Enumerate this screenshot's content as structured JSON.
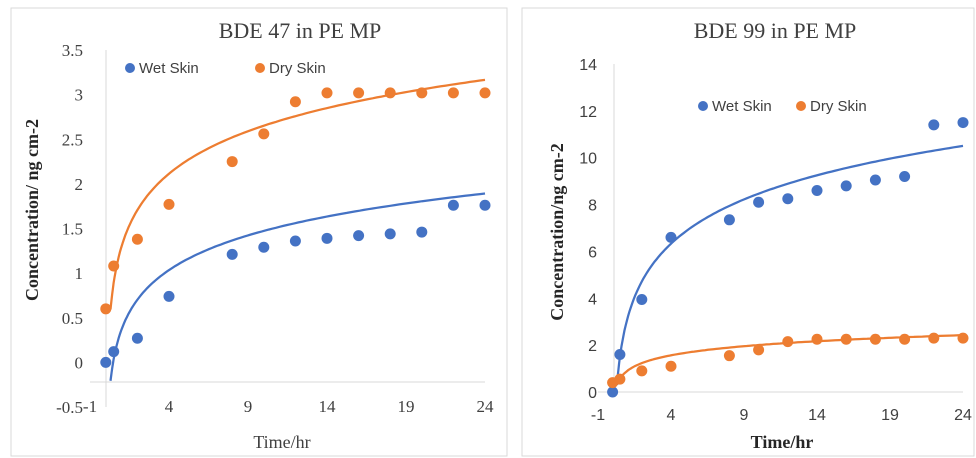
{
  "chart_data": [
    {
      "type": "scatter",
      "title": "BDE 47 in PE MP",
      "xlabel": "Time/hr",
      "ylabel": "Concentration/ ng cm-2",
      "xlim": [
        -1,
        24
      ],
      "ylim": [
        -0.5,
        3.5
      ],
      "xticks": [
        "-1",
        "4",
        "9",
        "14",
        "19",
        "24"
      ],
      "yticks": [
        "-0.5",
        "0",
        "0.5",
        "1",
        "1.5",
        "2",
        "2.5",
        "3",
        "3.5"
      ],
      "legend_position": "top-left",
      "series": [
        {
          "name": "Wet Skin",
          "color": "#4472C4",
          "x": [
            0,
            0.5,
            2,
            4,
            8,
            10,
            12,
            14,
            16,
            18,
            20,
            22,
            24
          ],
          "y": [
            0,
            0.12,
            0.27,
            0.74,
            1.21,
            1.29,
            1.36,
            1.39,
            1.42,
            1.44,
            1.46,
            1.76,
            1.76
          ],
          "trendline": {
            "type": "log",
            "a": 0.37,
            "b": 0.479
          }
        },
        {
          "name": "Dry Skin",
          "color": "#ED7D31",
          "x": [
            0,
            0.5,
            2,
            4,
            8,
            10,
            12,
            14,
            16,
            18,
            20,
            22,
            24
          ],
          "y": [
            0.6,
            1.08,
            1.38,
            1.77,
            2.25,
            2.56,
            2.92,
            3.02,
            3.02,
            3.02,
            3.02,
            3.02,
            3.02
          ],
          "trendline": {
            "type": "log",
            "a": 1.3,
            "b": 0.587
          }
        }
      ]
    },
    {
      "type": "scatter",
      "title": "BDE 99 in PE MP",
      "xlabel": "Time/hr",
      "ylabel": "Concentration/ng cm-2",
      "xlim": [
        -1,
        24
      ],
      "ylim": [
        0,
        14
      ],
      "xticks": [
        "-1",
        "4",
        "9",
        "14",
        "19",
        "24"
      ],
      "yticks": [
        "0",
        "2",
        "4",
        "6",
        "8",
        "10",
        "12",
        "14"
      ],
      "legend_position": "top-right",
      "series": [
        {
          "name": "Wet Skin",
          "color": "#4472C4",
          "x": [
            0,
            0.5,
            2,
            4,
            8,
            10,
            12,
            14,
            16,
            18,
            20,
            22,
            24
          ],
          "y": [
            0,
            1.6,
            3.95,
            6.6,
            7.35,
            8.1,
            8.25,
            8.6,
            8.8,
            9.05,
            9.2,
            11.4,
            11.5
          ],
          "trendline": {
            "type": "log",
            "a": 3.1,
            "b": 2.33
          }
        },
        {
          "name": "Dry Skin",
          "color": "#ED7D31",
          "x": [
            0,
            0.5,
            2,
            4,
            8,
            10,
            12,
            14,
            16,
            18,
            20,
            22,
            24
          ],
          "y": [
            0.4,
            0.55,
            0.9,
            1.1,
            1.55,
            1.8,
            2.15,
            2.25,
            2.25,
            2.25,
            2.25,
            2.3,
            2.3
          ],
          "trendline": {
            "type": "log",
            "a": 0.9,
            "b": 0.48
          }
        }
      ]
    }
  ]
}
